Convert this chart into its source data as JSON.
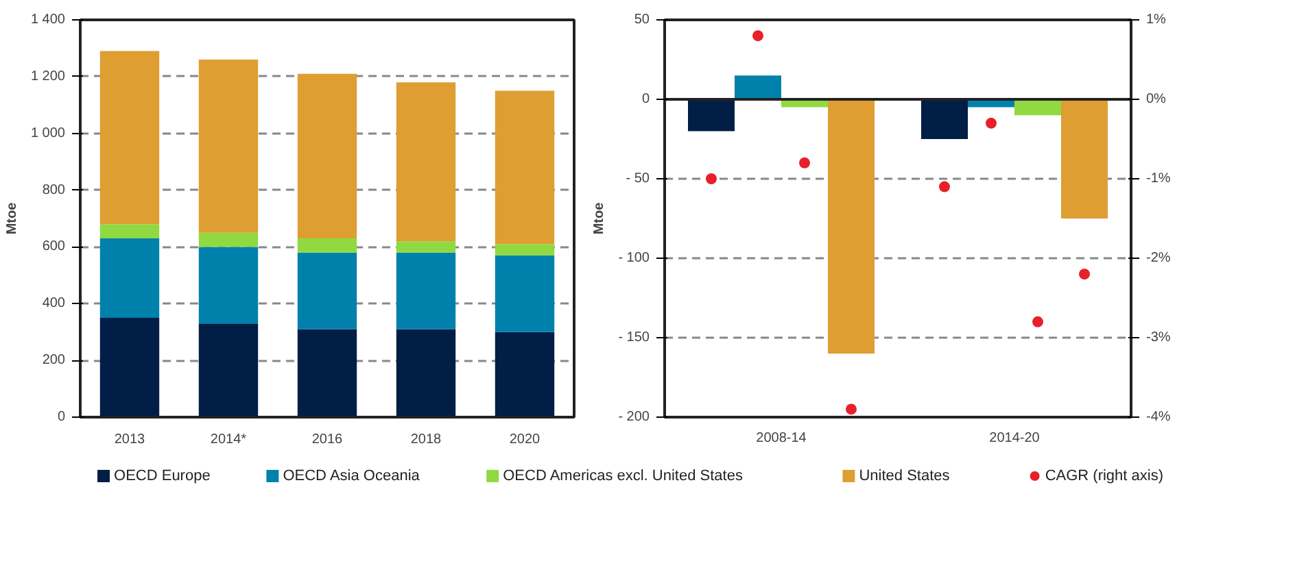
{
  "chart_data": [
    {
      "type": "bar",
      "stacked": true,
      "ylabel": "Mtoe",
      "categories": [
        "2013",
        "2014*",
        "2016",
        "2018",
        "2020"
      ],
      "ylim": [
        0,
        1400
      ],
      "yticks": [
        0,
        200,
        400,
        600,
        800,
        {
          "value": 1000,
          "label": "1 000"
        },
        {
          "value": 1200,
          "label": "1 200"
        },
        {
          "value": 1400,
          "label": "1 400"
        }
      ],
      "grid": "y",
      "legend": "bottom",
      "series": [
        {
          "name": "OECD Europe",
          "color": "#001e46",
          "values": [
            350,
            330,
            310,
            310,
            300
          ]
        },
        {
          "name": "OECD Asia Oceania",
          "color": "#0081ab",
          "values": [
            280,
            270,
            270,
            270,
            270
          ]
        },
        {
          "name": "OECD Americas excl. United States",
          "color": "#91d941",
          "values": [
            50,
            50,
            50,
            40,
            40
          ]
        },
        {
          "name": "United States",
          "color": "#de9e31",
          "values": [
            610,
            610,
            580,
            560,
            540
          ]
        }
      ]
    },
    {
      "type": "bar",
      "ylabel": "Mtoe",
      "categories": [
        "2008-14",
        "2014-20"
      ],
      "ylim": [
        -200,
        50
      ],
      "yticks": [
        {
          "value": -200,
          "label": "- 200"
        },
        {
          "value": -150,
          "label": "- 150"
        },
        {
          "value": -100,
          "label": "- 100"
        },
        {
          "value": -50,
          "label": "- 50"
        },
        0,
        50
      ],
      "y2lim": [
        -4,
        1
      ],
      "y2ticks": [
        {
          "value": -4,
          "label": "-4%"
        },
        {
          "value": -3,
          "label": "-3%"
        },
        {
          "value": -2,
          "label": "-2%"
        },
        {
          "value": -1,
          "label": "-1%"
        },
        {
          "value": 0,
          "label": "0%"
        },
        {
          "value": 1,
          "label": "1%"
        }
      ],
      "grid": "y",
      "legend": "bottom",
      "series": [
        {
          "color": "#001e46",
          "values": [
            -20,
            -25
          ]
        },
        {
          "color": "#0081ab",
          "values": [
            15,
            -5
          ]
        },
        {
          "color": "#91d941",
          "values": [
            -5,
            -10
          ]
        },
        {
          "color": "#de9e31",
          "values": [
            -160,
            -75
          ]
        },
        {
          "name": "CAGR (right axis)",
          "type": "scatter",
          "axis": "y2",
          "marker": "circle",
          "color": "#e8202a",
          "x": [
            "2008-14",
            "2008-14",
            "2008-14",
            "2008-14",
            "2014-20",
            "2014-20",
            "2014-20",
            "2014-20"
          ],
          "values": [
            -1.0,
            0.8,
            -0.8,
            -3.9,
            -1.1,
            -0.3,
            -2.8,
            -2.2
          ]
        }
      ]
    }
  ]
}
